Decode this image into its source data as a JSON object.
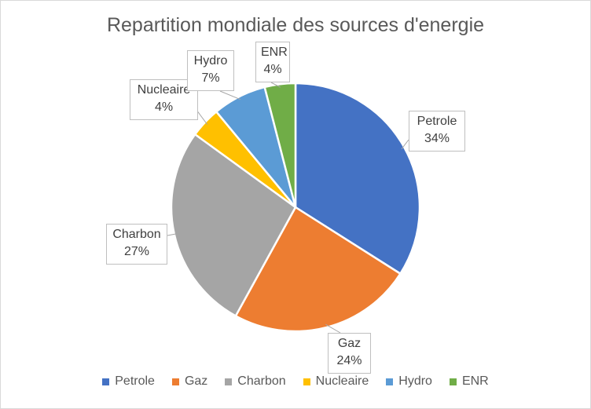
{
  "chart_data": {
    "type": "pie",
    "title": "Repartition mondiale des sources d'energie",
    "categories": [
      "Petrole",
      "Gaz",
      "Charbon",
      "Nucleaire",
      "Hydro",
      "ENR"
    ],
    "values": [
      34,
      24,
      27,
      4,
      7,
      4
    ],
    "labels": [
      "34%",
      "24%",
      "27%",
      "4%",
      "7%",
      "4%"
    ],
    "colors": [
      "#4472c4",
      "#ed7d31",
      "#a5a5a5",
      "#ffc000",
      "#5b9bd5",
      "#70ad47"
    ],
    "legend": "bottom"
  }
}
